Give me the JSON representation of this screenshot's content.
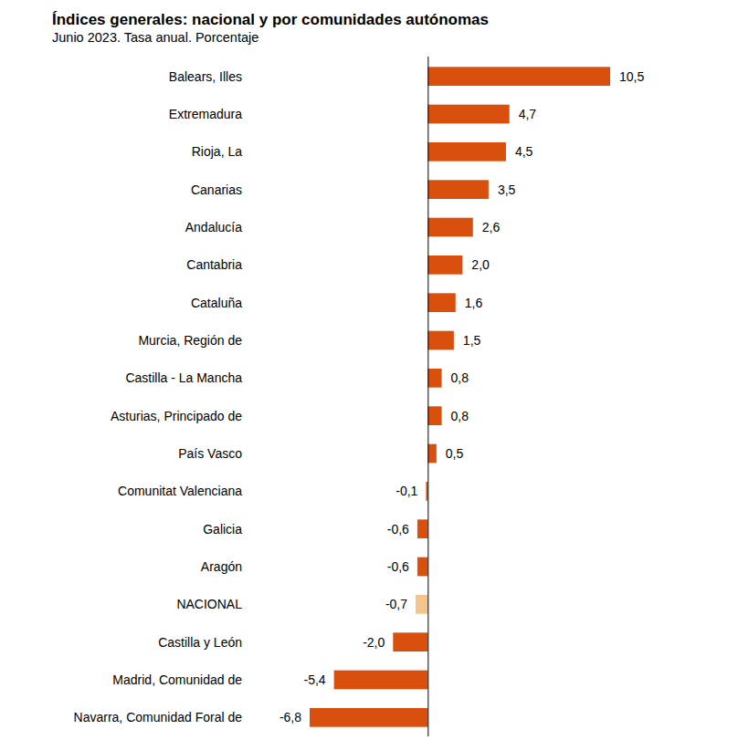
{
  "chart_data": {
    "type": "bar",
    "orientation": "horizontal",
    "title": "Índices generales: nacional y por comunidades autónomas",
    "subtitle": "Junio 2023. Tasa anual. Porcentaje",
    "categories": [
      "Balears, Illes",
      "Extremadura",
      "Rioja, La",
      "Canarias",
      "Andalucía",
      "Cantabria",
      "Cataluña",
      "Murcia, Región de",
      "Castilla - La Mancha",
      "Asturias, Principado de",
      "País Vasco",
      "Comunitat Valenciana",
      "Galicia",
      "Aragón",
      "NACIONAL",
      "Castilla y León",
      "Madrid, Comunidad de",
      "Navarra, Comunidad Foral de"
    ],
    "values": [
      10.5,
      4.7,
      4.5,
      3.5,
      2.6,
      2.0,
      1.6,
      1.5,
      0.8,
      0.8,
      0.5,
      -0.1,
      -0.6,
      -0.6,
      -0.7,
      -2.0,
      -5.4,
      -6.8
    ],
    "value_labels": [
      "10,5",
      "4,7",
      "4,5",
      "3,5",
      "2,6",
      "2,0",
      "1,6",
      "1,5",
      "0,8",
      "0,8",
      "0,5",
      "-0,1",
      "-0,6",
      "-0,6",
      "-0,7",
      "-2,0",
      "-5,4",
      "-6,8"
    ],
    "colors": [
      "#d9500e",
      "#d9500e",
      "#d9500e",
      "#d9500e",
      "#d9500e",
      "#d9500e",
      "#d9500e",
      "#d9500e",
      "#d9500e",
      "#d9500e",
      "#d9500e",
      "#d9500e",
      "#d9500e",
      "#d9500e",
      "#f4c58b",
      "#d9500e",
      "#d9500e",
      "#d9500e"
    ],
    "xlim": [
      -6.8,
      10.5
    ],
    "xticks": [
      0
    ],
    "grid": false,
    "data_labels": true,
    "tick_labels": false
  }
}
